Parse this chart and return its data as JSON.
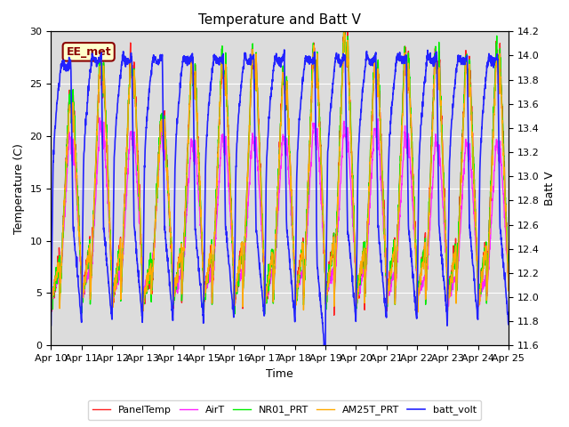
{
  "title": "Temperature and Batt V",
  "xlabel": "Time",
  "ylabel_left": "Temperature (C)",
  "ylabel_right": "Batt V",
  "annotation": "EE_met",
  "annotation_bg": "#FFFFCC",
  "annotation_edge": "#8B0000",
  "annotation_text_color": "#8B0000",
  "background_color": "#DCDCDC",
  "fig_background": "#FFFFFF",
  "ylim_left": [
    0,
    30
  ],
  "ylim_right": [
    11.6,
    14.2
  ],
  "x_tick_labels": [
    "Apr 10",
    "Apr 11",
    "Apr 12",
    "Apr 13",
    "Apr 14",
    "Apr 15",
    "Apr 16",
    "Apr 17",
    "Apr 18",
    "Apr 19",
    "Apr 20",
    "Apr 21",
    "Apr 22",
    "Apr 23",
    "Apr 24",
    "Apr 25"
  ],
  "legend_entries": [
    "PanelTemp",
    "AirT",
    "NR01_PRT",
    "AM25T_PRT",
    "batt_volt"
  ],
  "line_colors": [
    "#FF2222",
    "#FF22FF",
    "#00EE00",
    "#FFAA00",
    "#2222FF"
  ],
  "line_widths": [
    1.0,
    1.0,
    1.0,
    1.0,
    1.2
  ],
  "grid_color": "#FFFFFF",
  "title_fontsize": 11,
  "label_fontsize": 9,
  "tick_fontsize": 8,
  "legend_fontsize": 8
}
